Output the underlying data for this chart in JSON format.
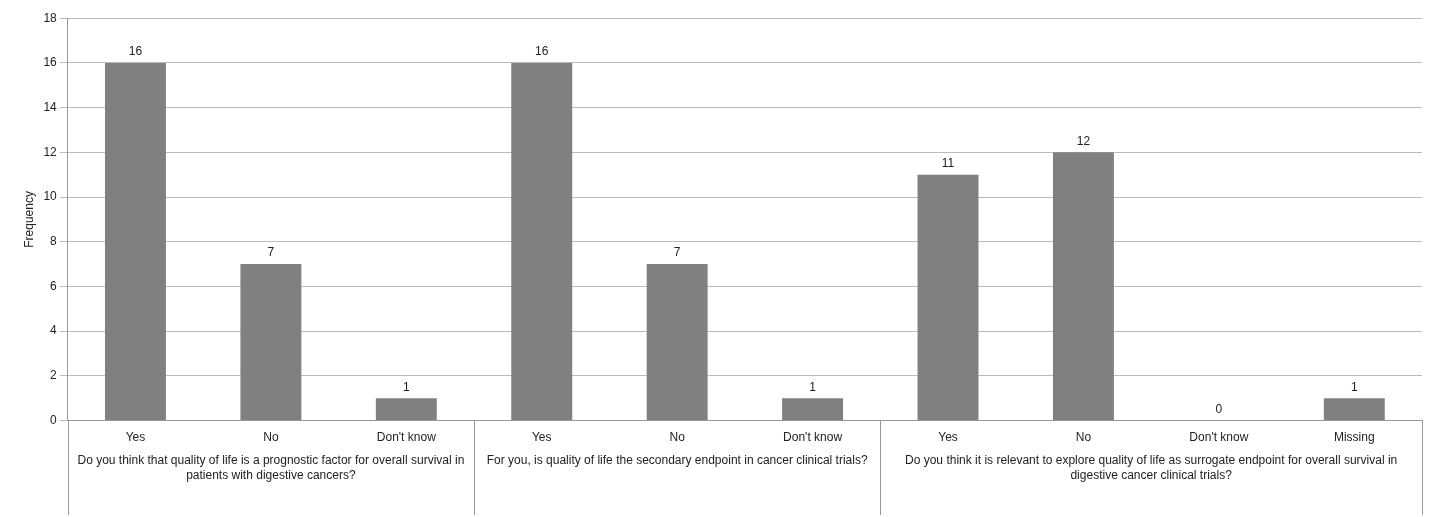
{
  "chart_data": {
    "type": "bar",
    "ylabel": "Frequency",
    "categories": [
      "Yes",
      "No",
      "Don't know",
      "Yes",
      "No",
      "Don't know",
      "Yes",
      "No",
      "Don't know",
      "Missing"
    ],
    "values": [
      16,
      7,
      1,
      16,
      7,
      1,
      11,
      12,
      0,
      1
    ],
    "color": "#808080",
    "ylim": [
      0,
      18
    ],
    "yticks": [
      0,
      2,
      4,
      6,
      8,
      10,
      12,
      14,
      16,
      18
    ],
    "grid": "y",
    "legend": false,
    "data_labels": true,
    "annotations": [
      "Do you think that quality of life is a prognostic factor for overall survival in patients with digestive cancers?",
      "For you, is quality of life the secondary endpoint in cancer clinical trials?",
      "Do you think it is relevant to explore quality of life as surrogate endpoint for overall survival in digestive cancer clinical trials?"
    ]
  }
}
